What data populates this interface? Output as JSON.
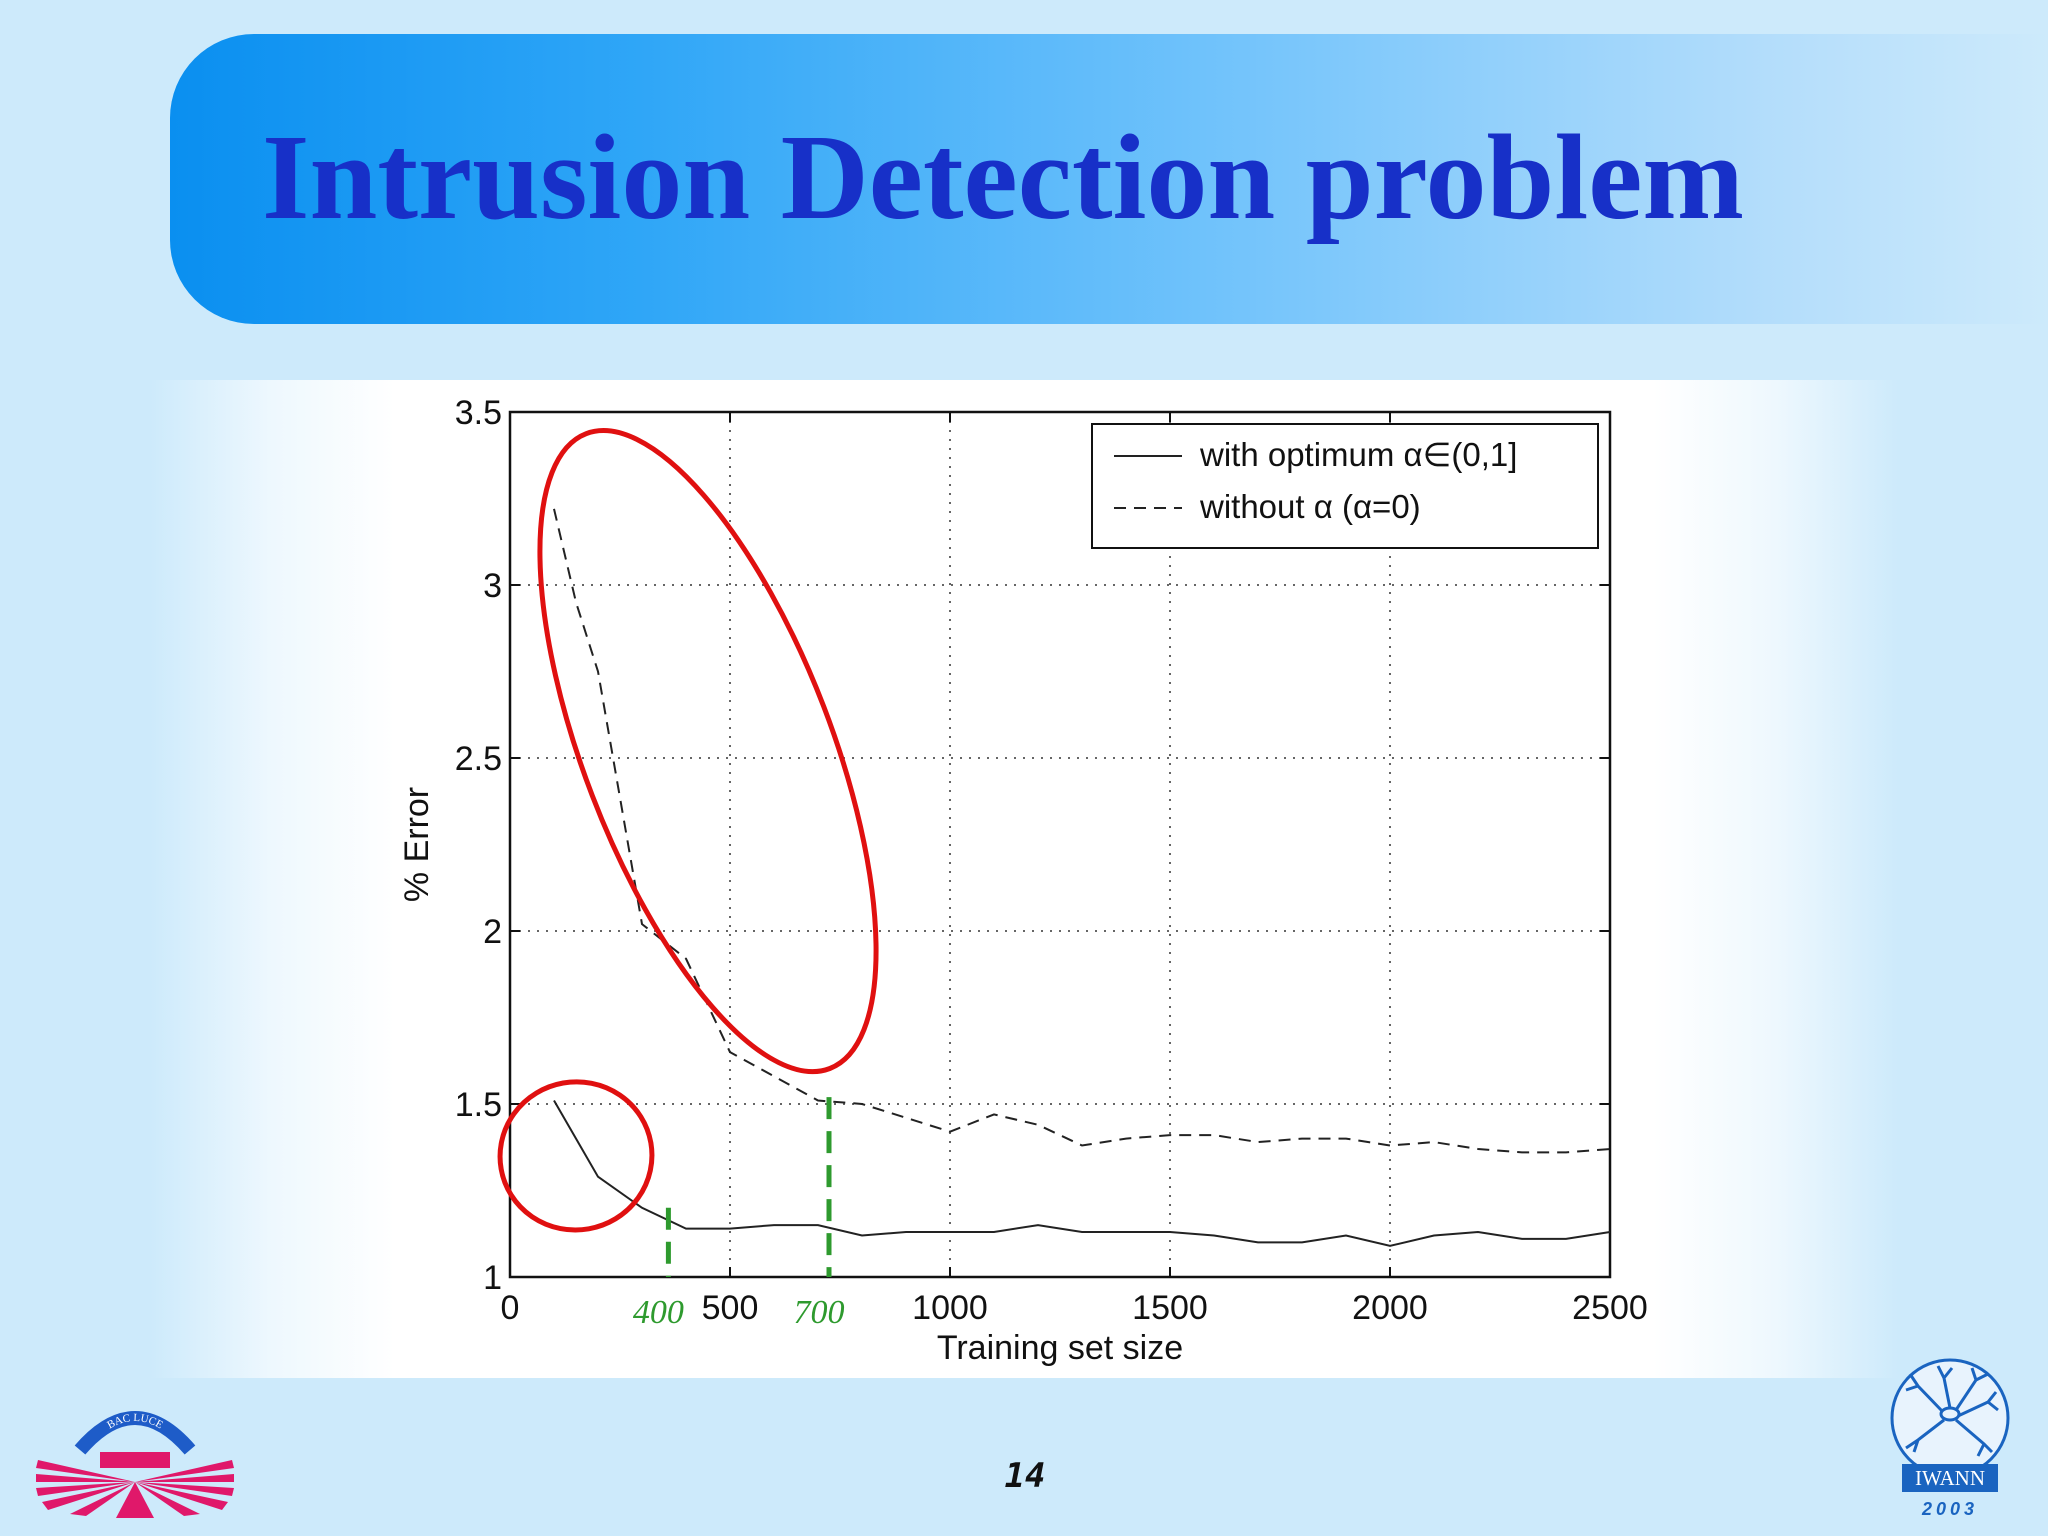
{
  "slide": {
    "title": "Intrusion Detection problem",
    "page_number": "14",
    "logo_left_text": "BAC LUCE",
    "logo_right_text": "IWANN",
    "logo_right_year": "2003"
  },
  "colors": {
    "title": "#1730c8",
    "highlight_ellipse": "#e01010",
    "marker": "#2e9a2e",
    "logo_left": "#e0186a",
    "logo_left_arc": "#1e5cc8",
    "logo_right": "#1a64c0"
  },
  "chart_data": {
    "type": "line",
    "xlabel": "Training set size",
    "ylabel": "% Error",
    "xlim": [
      0,
      2500
    ],
    "ylim": [
      1,
      3.5
    ],
    "xticks": [
      "0",
      "500",
      "1000",
      "1500",
      "2000",
      "2500"
    ],
    "yticks": [
      "1",
      "1.5",
      "2",
      "2.5",
      "3",
      "3.5"
    ],
    "grid": true,
    "legend_position": "top-right",
    "series": [
      {
        "name": "with optimum α∈(0,1]",
        "style": "solid",
        "x": [
          100,
          200,
          300,
          400,
          500,
          600,
          700,
          800,
          900,
          1000,
          1100,
          1200,
          1300,
          1400,
          1500,
          1600,
          1700,
          1800,
          1900,
          2000,
          2100,
          2200,
          2300,
          2400,
          2500
        ],
        "y": [
          1.51,
          1.29,
          1.2,
          1.14,
          1.14,
          1.15,
          1.15,
          1.12,
          1.13,
          1.13,
          1.13,
          1.15,
          1.13,
          1.13,
          1.13,
          1.12,
          1.1,
          1.1,
          1.12,
          1.09,
          1.12,
          1.13,
          1.11,
          1.11,
          1.13
        ]
      },
      {
        "name": "without α (α=0)",
        "style": "dashed",
        "x": [
          100,
          150,
          200,
          300,
          400,
          500,
          600,
          700,
          800,
          900,
          1000,
          1100,
          1200,
          1300,
          1400,
          1500,
          1600,
          1700,
          1800,
          1900,
          2000,
          2100,
          2200,
          2300,
          2400,
          2500
        ],
        "y": [
          3.22,
          2.95,
          2.75,
          2.02,
          1.92,
          1.65,
          1.58,
          1.51,
          1.5,
          1.46,
          1.42,
          1.47,
          1.44,
          1.38,
          1.4,
          1.41,
          1.41,
          1.39,
          1.4,
          1.4,
          1.38,
          1.39,
          1.37,
          1.36,
          1.36,
          1.37
        ]
      }
    ],
    "annotations": [
      {
        "kind": "ellipse",
        "label": "",
        "cx": 150,
        "cy": 1.35,
        "rx": 180,
        "ry": 0.28
      },
      {
        "kind": "ellipse",
        "label": "",
        "cx": 450,
        "cy": 2.52,
        "rx": 230,
        "ry": 0.95
      },
      {
        "kind": "vline",
        "x": 360,
        "label": "400"
      },
      {
        "kind": "vline",
        "x": 725,
        "label": "700"
      }
    ]
  }
}
